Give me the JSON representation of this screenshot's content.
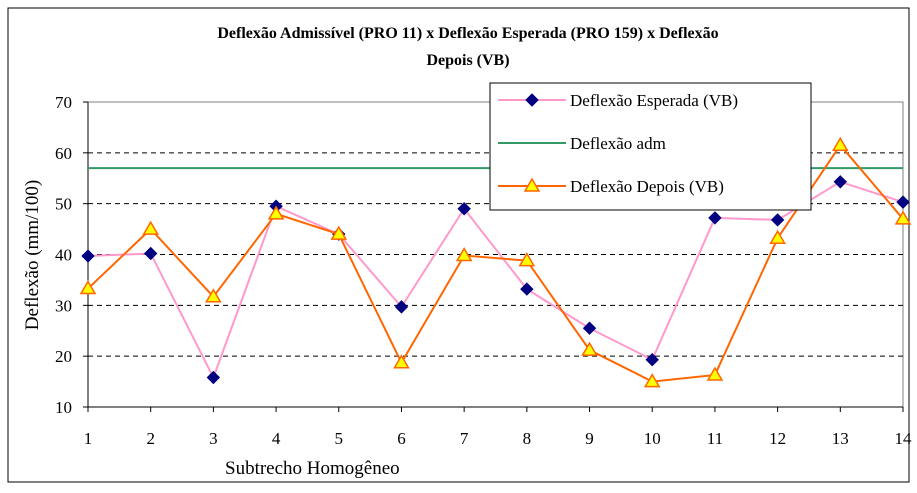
{
  "chart_data": {
    "type": "line",
    "title": "Deflexão Admissível (PRO 11) x Deflexão Esperada (PRO 159) x Deflexão",
    "subtitle": "Depois (VB)",
    "x_label": "Subtrecho  Homogêneo",
    "y_label": "Deflexão (mm/100)",
    "categories": [
      "1",
      "2",
      "3",
      "4",
      "5",
      "6",
      "7",
      "8",
      "9",
      "10",
      "11",
      "12",
      "13",
      "14"
    ],
    "series": [
      {
        "name": "Deflexão Esperada (VB)",
        "color": "#ff99cc",
        "marker_color": "#000080",
        "marker": "diamond",
        "values": [
          39.7,
          40.2,
          15.8,
          49.5,
          44,
          29.7,
          49,
          33.2,
          25.5,
          19.3,
          47.2,
          46.8,
          54.3,
          50.3
        ]
      },
      {
        "name": "Deflexão adm",
        "color": "#339966",
        "marker": "none",
        "values": [
          57,
          57,
          57,
          57,
          57,
          57,
          57,
          57,
          57,
          57,
          57,
          57,
          57,
          57
        ]
      },
      {
        "name": "Deflexão Depois (VB)",
        "color": "#ff6600",
        "marker_color": "#ffff00",
        "marker": "triangle",
        "values": [
          33.3,
          45,
          31.7,
          48,
          44,
          18.7,
          39.8,
          38.8,
          21.2,
          15,
          16.3,
          43.2,
          61.5,
          47
        ]
      }
    ],
    "ylim": [
      10,
      70
    ],
    "yticks": [
      10,
      20,
      30,
      40,
      50,
      60,
      70
    ],
    "grid": true,
    "grid_style": "dashed",
    "legend": "upper right"
  }
}
